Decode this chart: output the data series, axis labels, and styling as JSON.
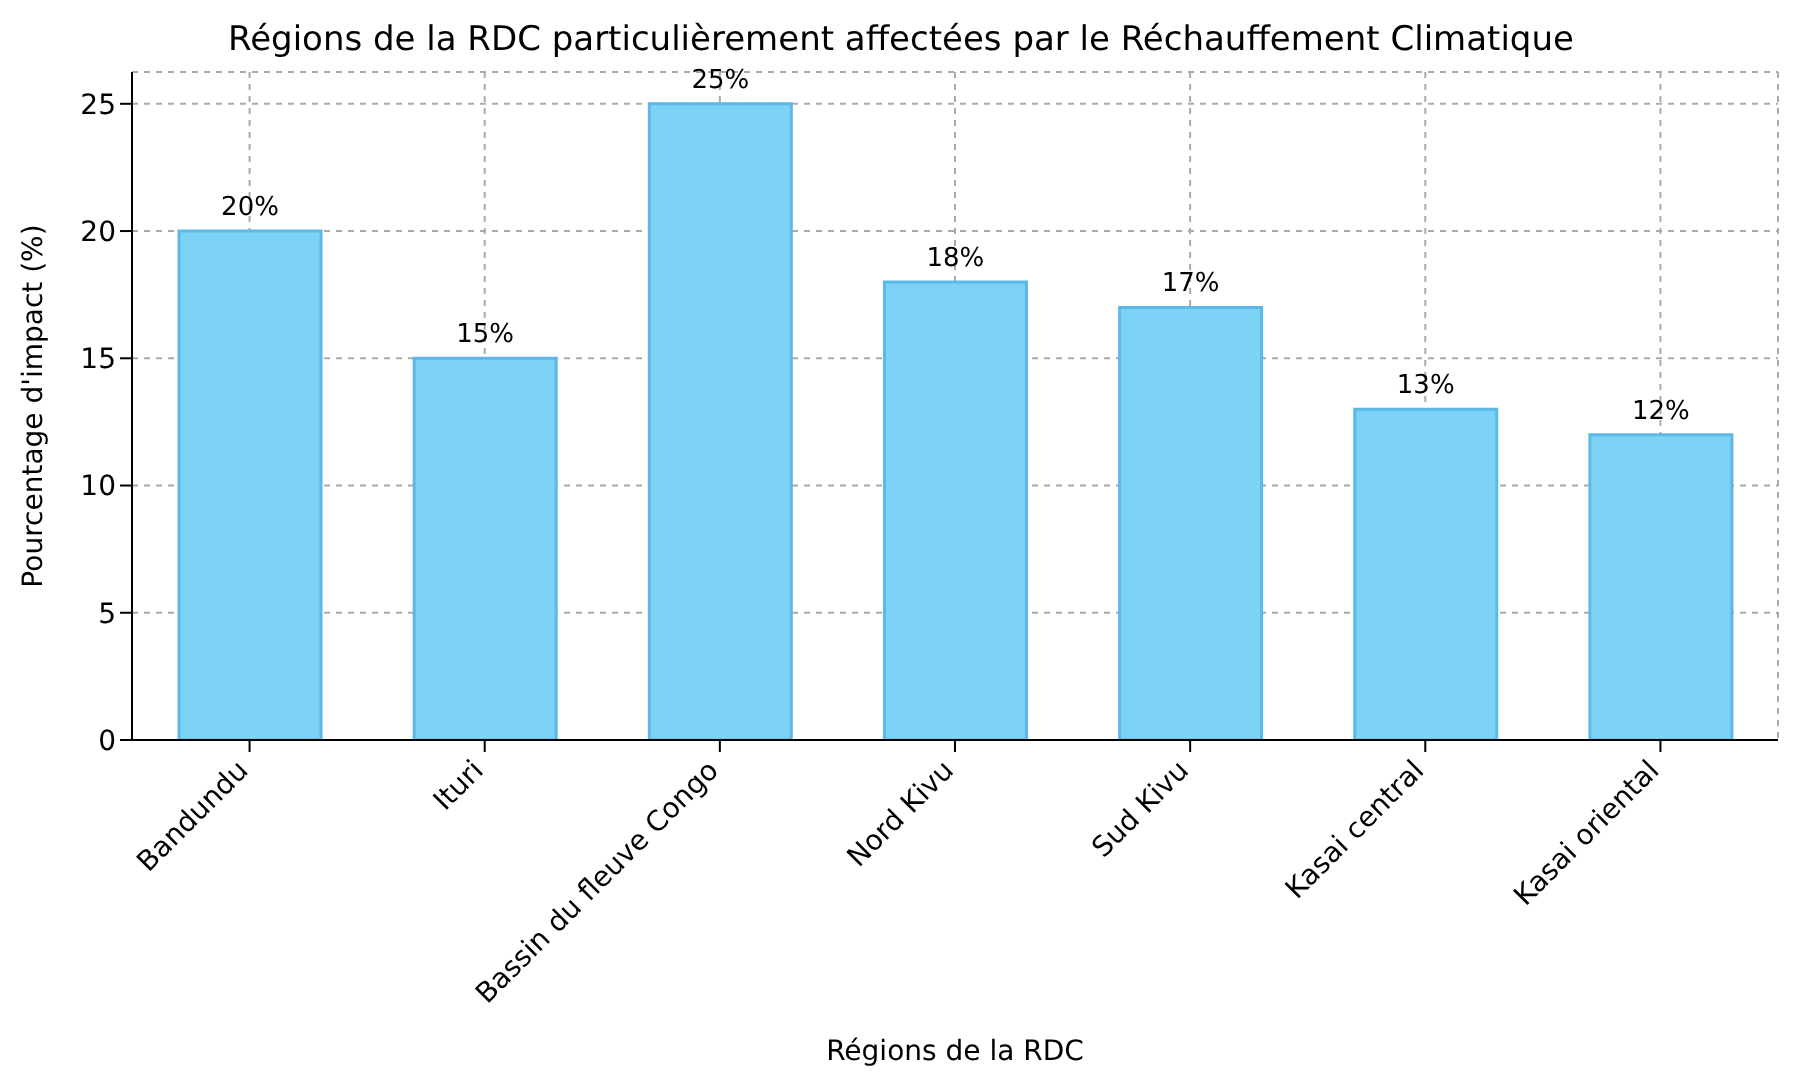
{
  "chart_data": {
    "type": "bar",
    "title": "Régions de la RDC particulièrement affectées par le Réchauffement Climatique",
    "xlabel": "Régions de la RDC",
    "ylabel": "Pourcentage d'impact (%)",
    "categories": [
      "Bandundu",
      "Ituri",
      "Bassin du fleuve Congo",
      "Nord Kivu",
      "Sud Kivu",
      "Kasai central",
      "Kasai oriental"
    ],
    "values": [
      20,
      15,
      25,
      18,
      17,
      13,
      12
    ],
    "value_labels": [
      "20%",
      "15%",
      "25%",
      "18%",
      "17%",
      "13%",
      "12%"
    ],
    "color": "#7dd3f5",
    "ylim": [
      0,
      26.25
    ],
    "yticks": [
      0,
      5,
      10,
      15,
      20,
      25
    ],
    "grid": true
  }
}
